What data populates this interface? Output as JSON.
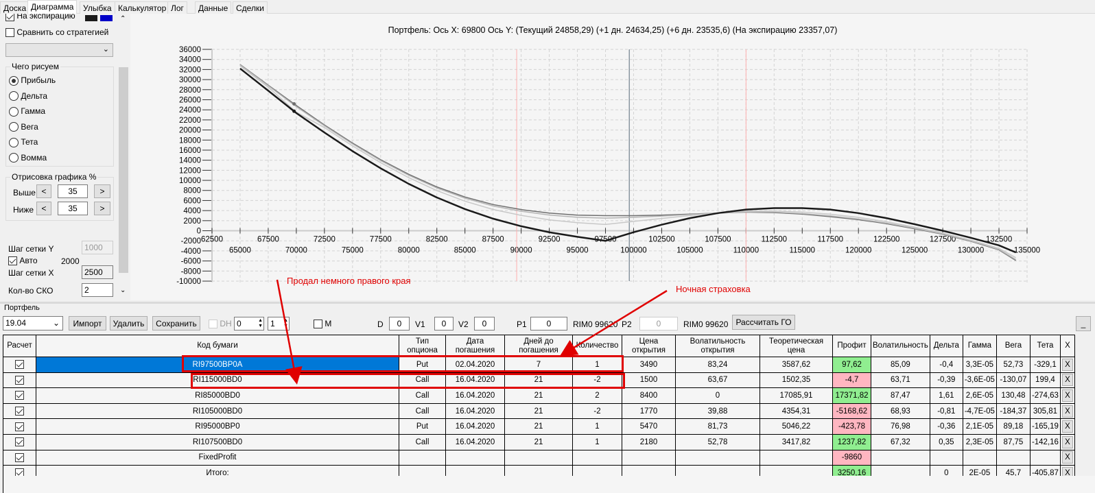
{
  "tabs": [
    "Доска",
    "Диаграмма",
    "Улыбка",
    "Калькулятор",
    "Лог",
    "Данные",
    "Сделки"
  ],
  "left_panel": {
    "expiration_label": "На экспирацию",
    "expiration_colors": [
      "#1a1a1a",
      "#0000c8"
    ],
    "compare_label": "Сравнить со стратегией",
    "draw_group": "Чего рисуем",
    "radios": [
      "Прибыль",
      "Дельта",
      "Гамма",
      "Вега",
      "Тета",
      "Вомма"
    ],
    "selected_radio": "Прибыль",
    "render_group": "Отрисовка графика %",
    "above_label": "Выше",
    "above_value": "35",
    "below_label": "Ниже",
    "below_value": "35",
    "prev": "<",
    "next": ">",
    "grid_y_label": "Шаг сетки Y",
    "grid_y_value": "1000",
    "auto_label": "Авто",
    "auto_value": "2000",
    "grid_x_label": "Шаг сетки X",
    "grid_x_value": "2500",
    "sko_label": "Кол-во СКО",
    "sko_value": "2"
  },
  "chart_data": {
    "type": "line",
    "title": "Портфель: Ось X: 69800 Ось Y:  (Текущий 24858,29)  (+1 дн. 24634,25)  (+6 дн. 23535,6)  (На экспирацию 23357,07)",
    "xlim": [
      62500,
      135000
    ],
    "ylim": [
      -10000,
      36000
    ],
    "xticks_top": [
      "62500",
      "67500",
      "72500",
      "77500",
      "82500",
      "87500",
      "92500",
      "97500",
      "102500",
      "107500",
      "112500",
      "117500",
      "122500",
      "127500",
      "132500"
    ],
    "xticks_bottom": [
      "65000",
      "70000",
      "75000",
      "80000",
      "85000",
      "90000",
      "95000",
      "100000",
      "105000",
      "110000",
      "115000",
      "120000",
      "125000",
      "130000",
      "135000"
    ],
    "yticks": [
      "36000",
      "34000",
      "32000",
      "30000",
      "28000",
      "26000",
      "24000",
      "22000",
      "20000",
      "18000",
      "16000",
      "14000",
      "12000",
      "10000",
      "8000",
      "6000",
      "4000",
      "2000",
      "0",
      "-2000",
      "-4000",
      "-6000",
      "-8000",
      "-10000"
    ],
    "x": [
      65000,
      67500,
      70000,
      72500,
      75000,
      77500,
      80000,
      82500,
      85000,
      87500,
      90000,
      92500,
      95000,
      97500,
      100000,
      102500,
      105000,
      107500,
      110000,
      112500,
      115000,
      117500,
      120000,
      122500,
      125000,
      127500,
      130000,
      132500,
      134000
    ],
    "series": [
      {
        "name": "Текущий",
        "color": "#6e6e6e",
        "values": [
          33000,
          28900,
          24858,
          21000,
          17400,
          14100,
          11200,
          8700,
          6700,
          5200,
          4200,
          3500,
          3100,
          3000,
          3000,
          3100,
          3300,
          3500,
          3700,
          3600,
          3300,
          2800,
          2200,
          1400,
          400,
          -700,
          -2100,
          -3800,
          -5900
        ]
      },
      {
        "name": "+1 дн.",
        "color": "#b4b4b4",
        "values": [
          32920,
          28790,
          24634,
          20850,
          17240,
          13930,
          11010,
          8490,
          6460,
          4920,
          3870,
          3120,
          2670,
          2500,
          2670,
          2910,
          3220,
          3500,
          3750,
          3690,
          3420,
          2940,
          2330,
          1510,
          490,
          -630,
          -2030,
          -3710,
          -5740
        ]
      },
      {
        "name": "+6 дн.",
        "color": "#c8c8c8",
        "values": [
          32720,
          28500,
          23535,
          20480,
          16840,
          13510,
          10540,
          7970,
          5860,
          4220,
          3050,
          2170,
          1600,
          1250,
          1850,
          2440,
          3020,
          3500,
          3880,
          3920,
          3720,
          3290,
          2660,
          1790,
          720,
          -460,
          -1860,
          -3490,
          -5350
        ]
      },
      {
        "name": "На экспирацию",
        "color": "#1a1a1a",
        "values": [
          32200,
          27800,
          23357,
          19500,
          15800,
          12400,
          9300,
          6600,
          4300,
          2400,
          900,
          -300,
          -1200,
          -2000,
          -300,
          1200,
          2500,
          3500,
          4200,
          4500,
          4500,
          4200,
          3500,
          2500,
          1300,
          0,
          -1400,
          -2900,
          -4300
        ]
      }
    ],
    "cursor_x": 69800,
    "current_price": 99620,
    "sigma_lines": [
      89600,
      110000
    ]
  },
  "annotations": {
    "left_note": "Продал немного правого края",
    "right_note": "Ночная страховка"
  },
  "portfolio": {
    "group_label": "Портфель",
    "select_value": "19.04",
    "import": "Импорт",
    "delete": "Удалить",
    "save": "Сохранить",
    "dh_label": "DH",
    "spin1": "0",
    "spin2": "1",
    "m_label": "M",
    "d_label": "D",
    "d_value": "0",
    "v1_label": "V1",
    "v1_value": "0",
    "v2_label": "V2",
    "v2_value": "0",
    "p1_label": "P1",
    "p1_value": "0",
    "p1_ref": "RIM0 99620",
    "p2_label": "P2",
    "p2_value": "0",
    "p2_ref": "RIM0 99620",
    "calc_go": "Рассчитать ГО",
    "minimize": "_"
  },
  "table": {
    "columns": [
      "Расчет",
      "Код бумаги",
      "Тип опциона",
      "Дата погашения",
      "Дней до погашения",
      "Количество",
      "Цена открытия",
      "Волатильность открытия",
      "Теоретическая цена",
      "Профит",
      "Волатильность",
      "Дельта",
      "Гамма",
      "Вега",
      "Тета",
      "X"
    ],
    "rows": [
      [
        "RI97500BP0A",
        "Put",
        "02.04.2020",
        "7",
        "1",
        "3490",
        "83,24",
        "3587,62",
        "97,62",
        "85,09",
        "-0,4",
        "3,3E-05",
        "52,73",
        "-329,1"
      ],
      [
        "RI115000BD0",
        "Call",
        "16.04.2020",
        "21",
        "-2",
        "1500",
        "63,67",
        "1502,35",
        "-4,7",
        "63,71",
        "-0,39",
        "-3,6E-05",
        "-130,07",
        "199,4"
      ],
      [
        "RI85000BD0",
        "Call",
        "16.04.2020",
        "21",
        "2",
        "8400",
        "0",
        "17085,91",
        "17371,82",
        "87,47",
        "1,61",
        "2,6E-05",
        "130,48",
        "-274,63"
      ],
      [
        "RI105000BD0",
        "Call",
        "16.04.2020",
        "21",
        "-2",
        "1770",
        "39,88",
        "4354,31",
        "-5168,62",
        "68,93",
        "-0,81",
        "-4,7E-05",
        "-184,37",
        "305,81"
      ],
      [
        "RI95000BP0",
        "Put",
        "16.04.2020",
        "21",
        "1",
        "5470",
        "81,73",
        "5046,22",
        "-423,78",
        "76,98",
        "-0,36",
        "2,1E-05",
        "89,18",
        "-165,19"
      ],
      [
        "RI107500BD0",
        "Call",
        "16.04.2020",
        "21",
        "1",
        "2180",
        "52,78",
        "3417,82",
        "1237,82",
        "67,32",
        "0,35",
        "2,3E-05",
        "87,75",
        "-142,16"
      ],
      [
        "FixedProfit",
        "",
        "",
        "",
        "",
        "",
        "",
        "",
        "-9860",
        "",
        "",
        "",
        "",
        ""
      ],
      [
        "Итого:",
        "",
        "",
        "",
        "",
        "",
        "",
        "",
        "3250,16",
        "",
        "0",
        "2E-05",
        "45,7",
        "-405,87"
      ]
    ],
    "delete_label": "X"
  }
}
